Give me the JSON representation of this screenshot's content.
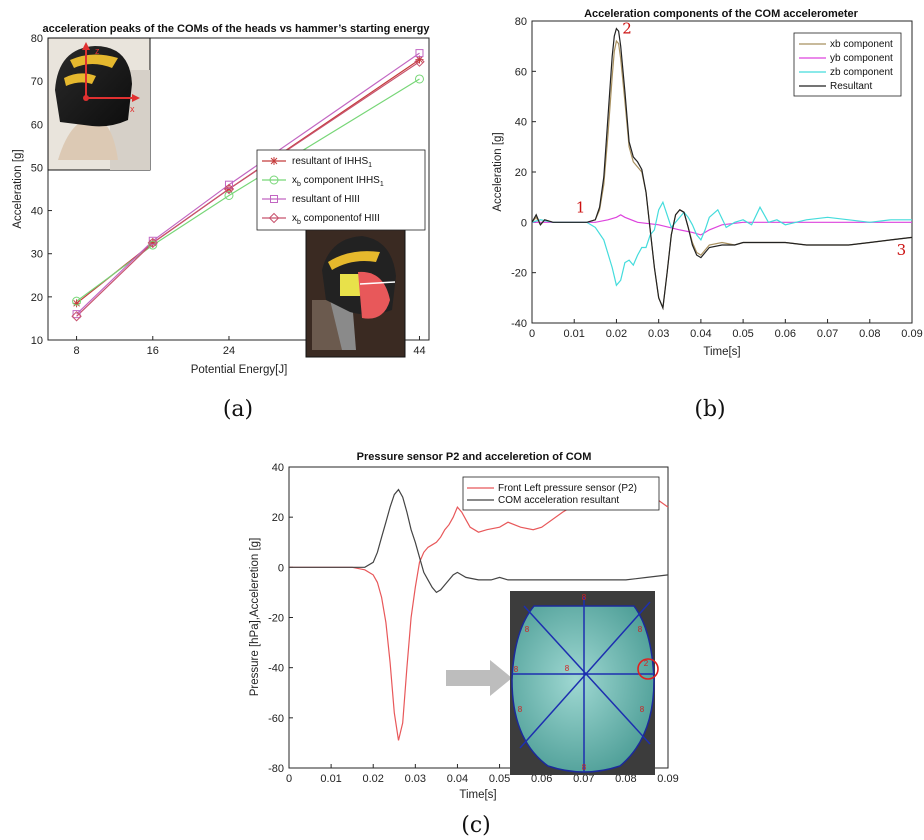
{
  "panel_labels": [
    "(a)",
    "(b)",
    "(c)"
  ],
  "chart_data": [
    {
      "type": "line",
      "title": "acceleration peaks of the COMs of the heads vs hammer’s starting energy",
      "xlabel": "Potential Energy[J]",
      "ylabel": "Acceleration [g]",
      "xlim": [
        5,
        45
      ],
      "ylim": [
        10,
        80
      ],
      "xticks": [
        8,
        16,
        24,
        44
      ],
      "yticks": [
        10,
        20,
        30,
        40,
        50,
        60,
        70,
        80
      ],
      "grid": false,
      "legend_position": "center-right",
      "x": [
        8,
        16,
        24,
        44
      ],
      "series": [
        {
          "name": "resultant of IHHS1",
          "legend_main": "resultant of IHHS",
          "legend_sub": "1",
          "color": "#c43c3c",
          "marker": "star",
          "values": [
            18.5,
            32.5,
            45,
            75
          ]
        },
        {
          "name": "xb component IHHS1",
          "legend_x": "x",
          "legend_b": "b",
          "legend_main": " component IHHS",
          "legend_sub": "1",
          "color": "#77d677",
          "marker": "circle",
          "values": [
            19,
            32,
            43.5,
            70.5
          ]
        },
        {
          "name": "resultant of HIII",
          "legend_main": "resultant of HIII",
          "color": "#c266c2",
          "marker": "square",
          "values": [
            16,
            33,
            46,
            76.5
          ]
        },
        {
          "name": "xb componentof HIII",
          "legend_x": "x",
          "legend_b": "b",
          "legend_main": " componentof HIII",
          "color": "#c8536e",
          "marker": "diamond",
          "values": [
            15.5,
            32.5,
            45,
            74.5
          ]
        }
      ]
    },
    {
      "type": "line",
      "title": "Acceleration components of the COM accelerometer",
      "xlabel": "Time[s]",
      "ylabel": "Acceleration [g]",
      "xlim": [
        0,
        0.09
      ],
      "ylim": [
        -40,
        80
      ],
      "xticks": [
        0,
        0.01,
        0.02,
        0.03,
        0.04,
        0.05,
        0.06,
        0.07,
        0.08,
        0.09
      ],
      "xtick_labels": [
        "0",
        "0.01",
        "0.02",
        "0.03",
        "0.04",
        "0.05",
        "0.06",
        "0.07",
        "0.08",
        "0.09"
      ],
      "yticks": [
        -40,
        -20,
        0,
        20,
        40,
        60,
        80
      ],
      "grid": false,
      "legend_position": "top-right",
      "annotations": [
        {
          "text": "1",
          "x": 0.0115,
          "y": 4
        },
        {
          "text": "2",
          "x": 0.0225,
          "y": 75
        },
        {
          "text": "3",
          "x": 0.0875,
          "y": -13
        }
      ],
      "series": [
        {
          "name": "xb component",
          "color": "#a8905f",
          "x": [
            0,
            0.001,
            0.002,
            0.003,
            0.005,
            0.008,
            0.01,
            0.013,
            0.015,
            0.016,
            0.017,
            0.018,
            0.019,
            0.0195,
            0.02,
            0.0205,
            0.021,
            0.022,
            0.023,
            0.024,
            0.025,
            0.026,
            0.027,
            0.028,
            0.029,
            0.03,
            0.031,
            0.032,
            0.033,
            0.034,
            0.035,
            0.036,
            0.037,
            0.038,
            0.039,
            0.04,
            0.042,
            0.045,
            0.048,
            0.05,
            0.055,
            0.06,
            0.065,
            0.07,
            0.075,
            0.08,
            0.085,
            0.09
          ],
          "values": [
            0,
            2,
            -1,
            1,
            0,
            0,
            0,
            0,
            1,
            5,
            15,
            35,
            58,
            68,
            72,
            71,
            65,
            48,
            30,
            24,
            22,
            20,
            12,
            -3,
            -18,
            -30,
            -34,
            -20,
            -5,
            3,
            5,
            4,
            -2,
            -8,
            -12,
            -13,
            -9,
            -8,
            -9,
            -8,
            -8,
            -8,
            -9,
            -9,
            -9,
            -8,
            -7,
            -6
          ]
        },
        {
          "name": "yb component",
          "color": "#dd44dd",
          "x": [
            0,
            0.005,
            0.01,
            0.015,
            0.018,
            0.02,
            0.021,
            0.022,
            0.025,
            0.03,
            0.035,
            0.038,
            0.04,
            0.042,
            0.045,
            0.05,
            0.055,
            0.06,
            0.07,
            0.08,
            0.09
          ],
          "values": [
            0,
            0,
            0,
            0,
            1,
            2,
            3,
            2,
            0,
            -1,
            -3,
            -4,
            -5,
            -3,
            -1,
            0,
            0,
            0,
            0,
            0,
            0
          ]
        },
        {
          "name": "zb component",
          "color": "#44dcdc",
          "x": [
            0,
            0.002,
            0.005,
            0.01,
            0.013,
            0.015,
            0.017,
            0.019,
            0.02,
            0.021,
            0.022,
            0.023,
            0.024,
            0.025,
            0.026,
            0.027,
            0.028,
            0.029,
            0.03,
            0.031,
            0.032,
            0.033,
            0.034,
            0.035,
            0.036,
            0.037,
            0.038,
            0.039,
            0.04,
            0.041,
            0.042,
            0.044,
            0.046,
            0.048,
            0.05,
            0.052,
            0.054,
            0.056,
            0.058,
            0.06,
            0.065,
            0.07,
            0.075,
            0.08,
            0.085,
            0.09
          ],
          "values": [
            0,
            1,
            0,
            0,
            0,
            -2,
            -7,
            -18,
            -25,
            -23,
            -16,
            -15,
            -17,
            -13,
            -10,
            -10,
            -5,
            -3,
            5,
            8,
            3,
            -2,
            0,
            2,
            4,
            2,
            -1,
            -5,
            -7,
            -3,
            2,
            5,
            -2,
            0,
            1,
            -1,
            6,
            0,
            1,
            -1,
            1,
            2,
            1,
            0,
            1,
            1
          ]
        },
        {
          "name": "Resultant",
          "color": "#222222",
          "x": [
            0,
            0.001,
            0.002,
            0.003,
            0.005,
            0.008,
            0.01,
            0.013,
            0.015,
            0.016,
            0.017,
            0.018,
            0.019,
            0.0195,
            0.02,
            0.0205,
            0.021,
            0.022,
            0.023,
            0.024,
            0.025,
            0.026,
            0.027,
            0.028,
            0.029,
            0.03,
            0.031,
            0.032,
            0.033,
            0.034,
            0.035,
            0.036,
            0.037,
            0.038,
            0.039,
            0.04,
            0.042,
            0.045,
            0.048,
            0.05,
            0.055,
            0.06,
            0.065,
            0.07,
            0.075,
            0.08,
            0.085,
            0.09
          ],
          "values": [
            0,
            3,
            -1,
            1,
            0,
            0,
            0,
            0,
            1,
            6,
            18,
            42,
            66,
            74,
            77,
            76,
            70,
            52,
            32,
            26,
            24,
            21,
            12,
            -3,
            -18,
            -30,
            -34,
            -20,
            -5,
            3,
            5,
            4,
            -2,
            -9,
            -13,
            -14,
            -10,
            -9,
            -9,
            -8,
            -8,
            -8,
            -9,
            -9,
            -9,
            -8,
            -7,
            -6
          ]
        }
      ]
    },
    {
      "type": "line",
      "title": "Pressure sensor P2 and acceleretion of COM",
      "xlabel": "Time[s]",
      "ylabel": "Pressure [hPa],Acceleretion [g]",
      "xlim": [
        0,
        0.09
      ],
      "ylim": [
        -80,
        40
      ],
      "xticks": [
        0,
        0.01,
        0.02,
        0.03,
        0.04,
        0.05,
        0.06,
        0.07,
        0.08,
        0.09
      ],
      "xtick_labels": [
        "0",
        "0.01",
        "0.02",
        "0.03",
        "0.04",
        "0.05",
        "0.06",
        "0.07",
        "0.08",
        "0.09"
      ],
      "yticks": [
        -80,
        -60,
        -40,
        -20,
        0,
        20,
        40
      ],
      "grid": false,
      "legend_position": "top-right",
      "series": [
        {
          "name": "Front Left pressure sensor (P2)",
          "color": "#e8585a",
          "x": [
            0,
            0.005,
            0.01,
            0.015,
            0.018,
            0.02,
            0.021,
            0.022,
            0.023,
            0.024,
            0.025,
            0.026,
            0.027,
            0.028,
            0.029,
            0.03,
            0.031,
            0.032,
            0.033,
            0.034,
            0.035,
            0.036,
            0.037,
            0.038,
            0.039,
            0.04,
            0.041,
            0.042,
            0.043,
            0.045,
            0.047,
            0.05,
            0.052,
            0.055,
            0.058,
            0.06,
            0.065,
            0.07,
            0.075,
            0.08,
            0.085,
            0.09
          ],
          "values": [
            0,
            0,
            0,
            0,
            -1,
            -3,
            -6,
            -12,
            -22,
            -38,
            -58,
            -69,
            -62,
            -40,
            -20,
            -8,
            2,
            6,
            8,
            9,
            10,
            12,
            15,
            17,
            20,
            24,
            22,
            19,
            16,
            14,
            15,
            16,
            18,
            16,
            15,
            16,
            22,
            27,
            30,
            30,
            30,
            24
          ]
        },
        {
          "name": "COM acceleration resultant",
          "color": "#444444",
          "x": [
            0,
            0.005,
            0.01,
            0.015,
            0.018,
            0.02,
            0.021,
            0.022,
            0.023,
            0.024,
            0.025,
            0.026,
            0.027,
            0.028,
            0.029,
            0.03,
            0.031,
            0.032,
            0.033,
            0.034,
            0.035,
            0.036,
            0.037,
            0.038,
            0.039,
            0.04,
            0.042,
            0.045,
            0.048,
            0.05,
            0.052,
            0.055,
            0.06,
            0.065,
            0.07,
            0.075,
            0.08,
            0.085,
            0.09
          ],
          "values": [
            0,
            0,
            0,
            0,
            0,
            2,
            6,
            12,
            18,
            24,
            29,
            31,
            28,
            22,
            15,
            10,
            4,
            -2,
            -5,
            -8,
            -10,
            -9,
            -7,
            -5,
            -3,
            -2,
            -4,
            -5,
            -5,
            -4,
            -5,
            -5,
            -5,
            -5,
            -5,
            -5,
            -5,
            -4,
            -3
          ]
        }
      ],
      "inset_labels": [
        "8",
        "8",
        "8",
        "8",
        "8",
        "8",
        "8",
        "8",
        "2"
      ]
    }
  ]
}
